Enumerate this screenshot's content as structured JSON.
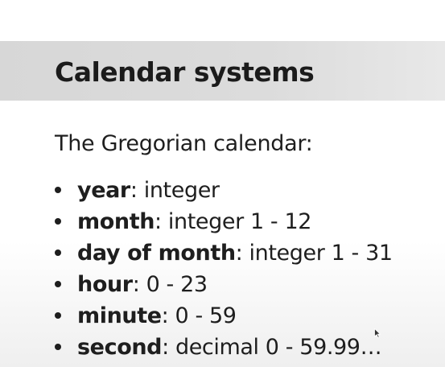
{
  "slide": {
    "title": "Calendar systems",
    "intro": "The Gregorian calendar:",
    "bullets": [
      {
        "term": "year",
        "desc": ": integer"
      },
      {
        "term": "month",
        "desc": ": integer 1 - 12"
      },
      {
        "term": "day of month",
        "desc": ": integer 1 - 31"
      },
      {
        "term": "hour",
        "desc": ": 0 - 23"
      },
      {
        "term": "minute",
        "desc": ": 0 - 59"
      },
      {
        "term": "second",
        "desc": ": decimal 0 - 59.99…"
      }
    ]
  },
  "colors": {
    "title_bar": "#d9d9d9",
    "text": "#1e1e1e",
    "background": "#ffffff"
  },
  "icons": {
    "bullet": "bullet-dot-icon",
    "cursor": "mouse-cursor-icon"
  }
}
